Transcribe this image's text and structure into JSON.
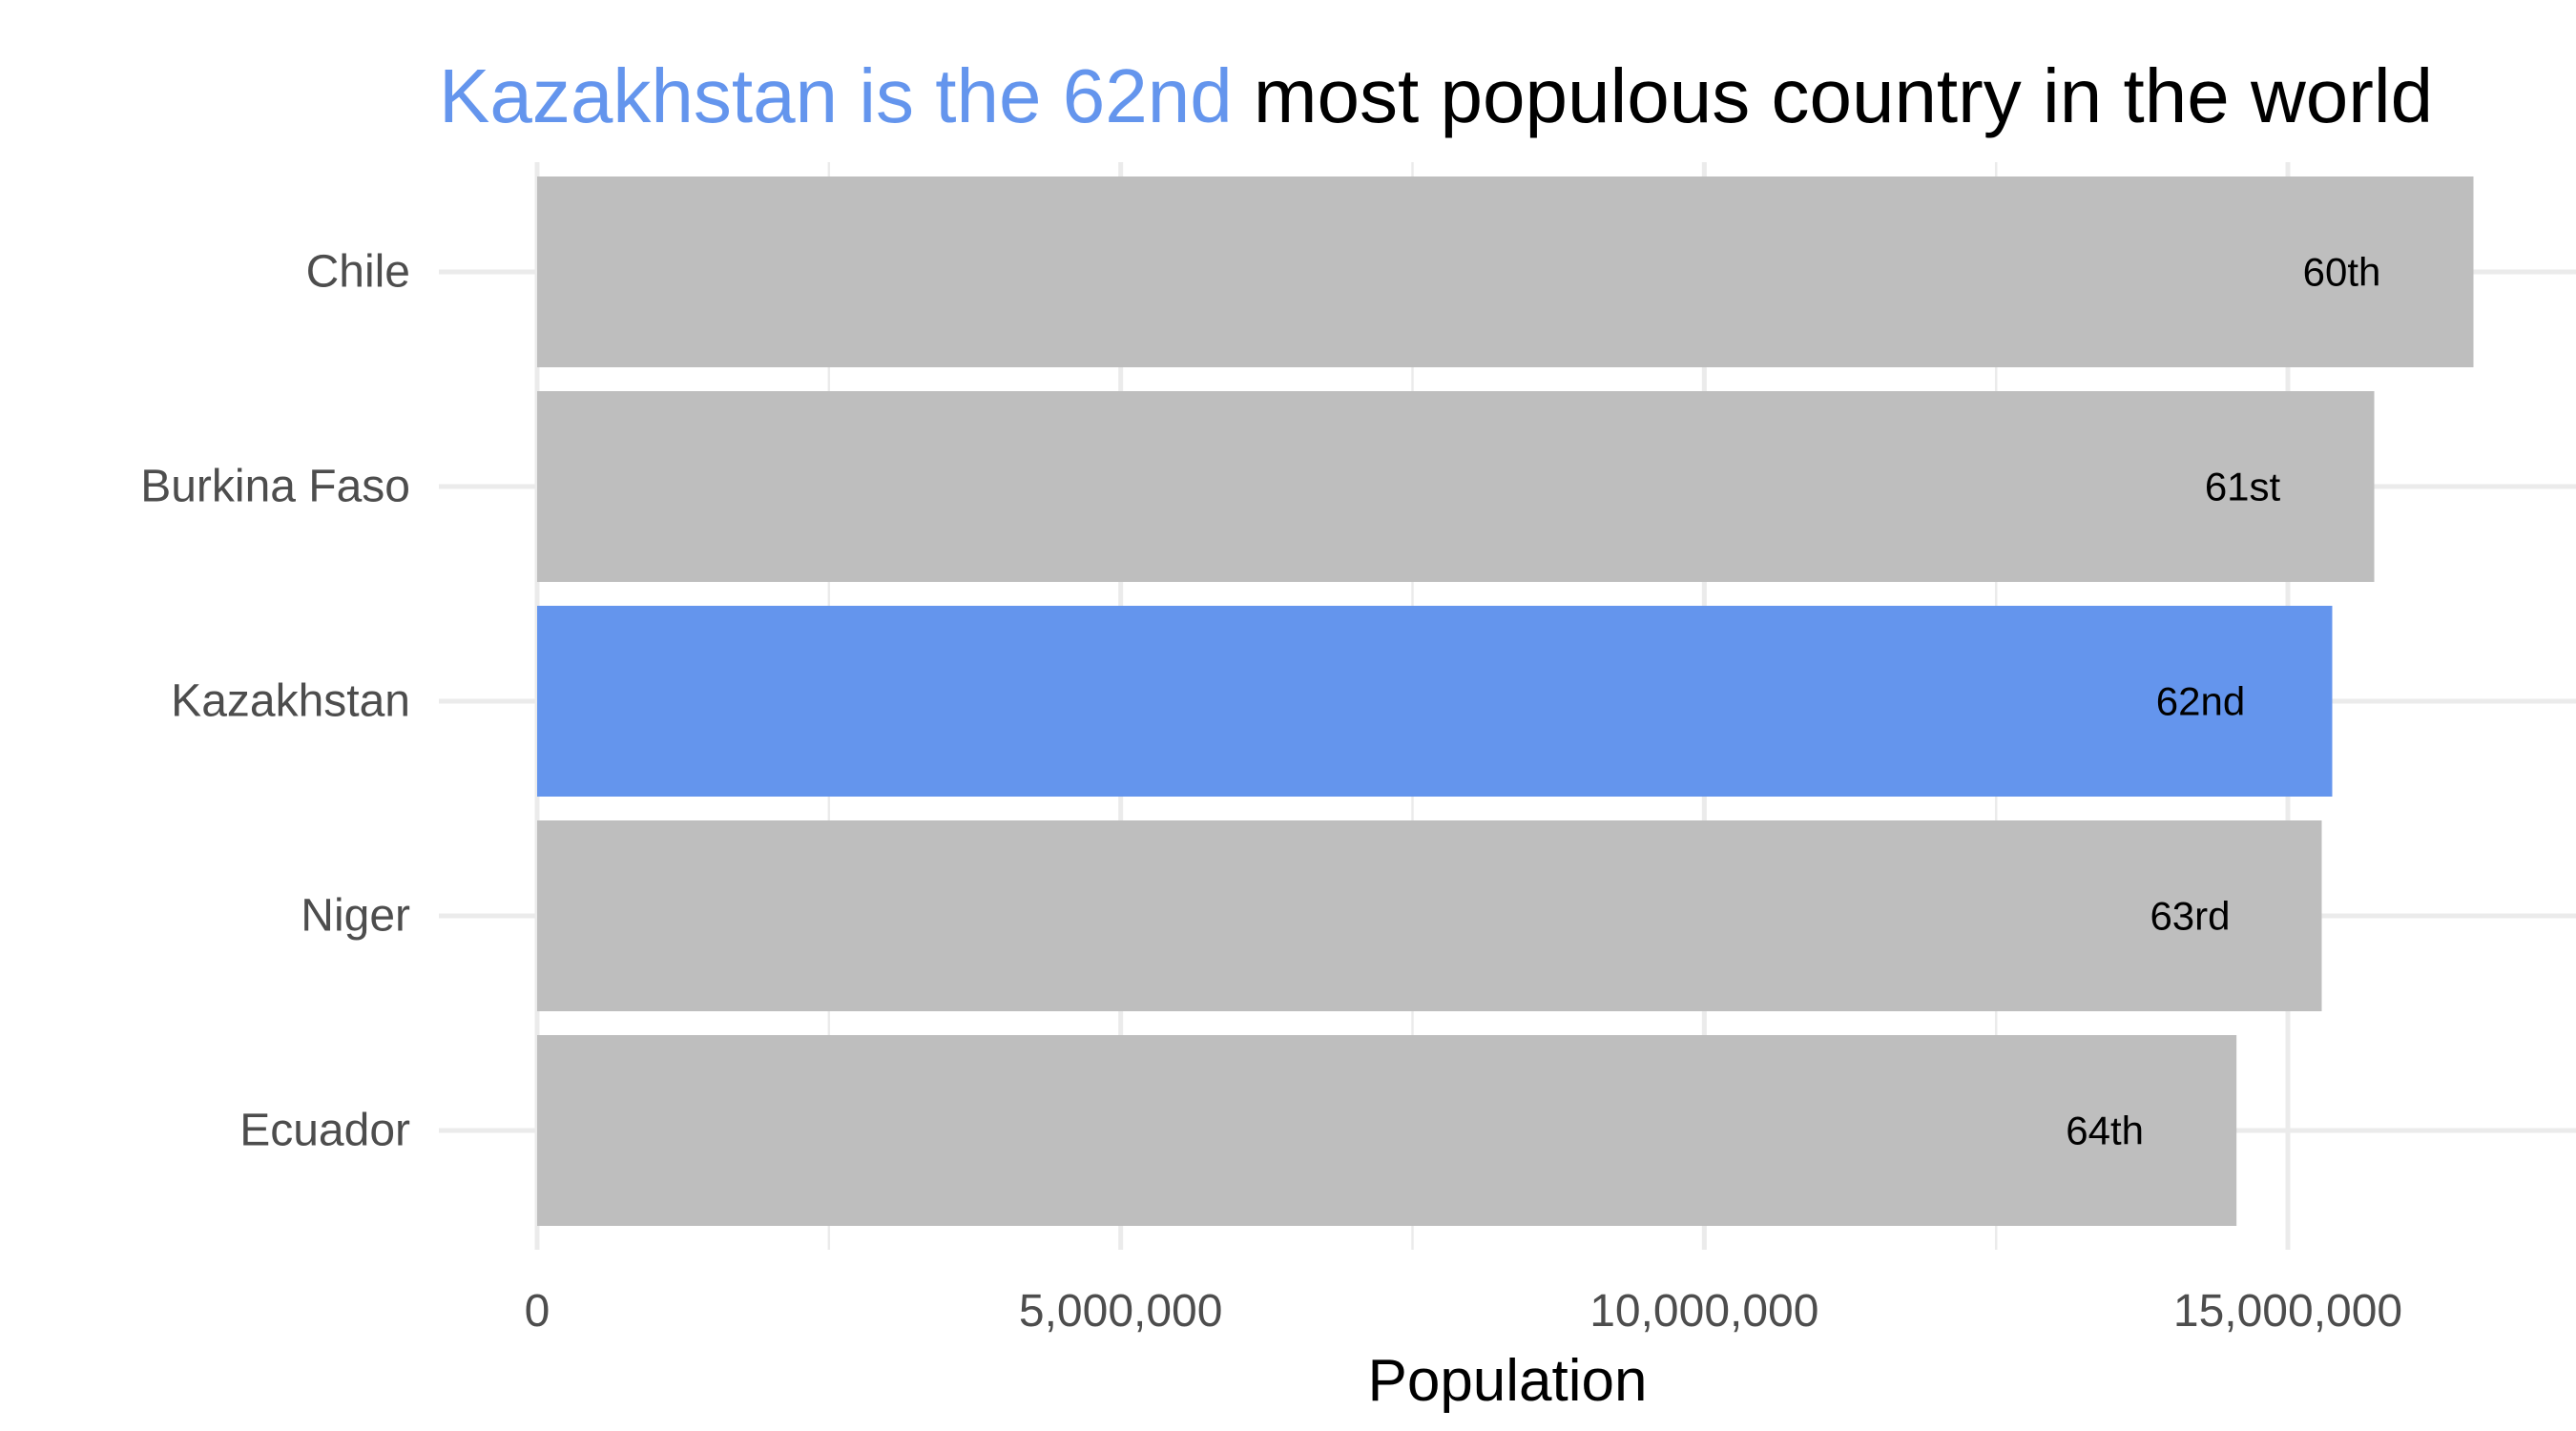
{
  "title": {
    "highlight": "Kazakhstan is the 62nd",
    "rest": " most populous country in the world"
  },
  "colors": {
    "highlight": "#6495ED",
    "bar_default": "#BEBEBE",
    "grid": "#EBEBEB",
    "title": "#000000"
  },
  "chart_data": {
    "type": "bar",
    "orientation": "horizontal",
    "categories": [
      "Chile",
      "Burkina Faso",
      "Kazakhstan",
      "Niger",
      "Ecuador"
    ],
    "values": [
      16590000,
      15740000,
      15380000,
      15290000,
      14560000
    ],
    "bar_labels": [
      "60th",
      "61st",
      "62nd",
      "63rd",
      "64th"
    ],
    "highlight_category": "Kazakhstan",
    "xlabel": "Population",
    "ylabel": "",
    "xlim": [
      0,
      17000000
    ],
    "xticks": [
      0,
      5000000,
      10000000,
      15000000
    ],
    "xtick_labels": [
      "0",
      "5,000,000",
      "10,000,000",
      "15,000,000"
    ],
    "grid": true
  }
}
